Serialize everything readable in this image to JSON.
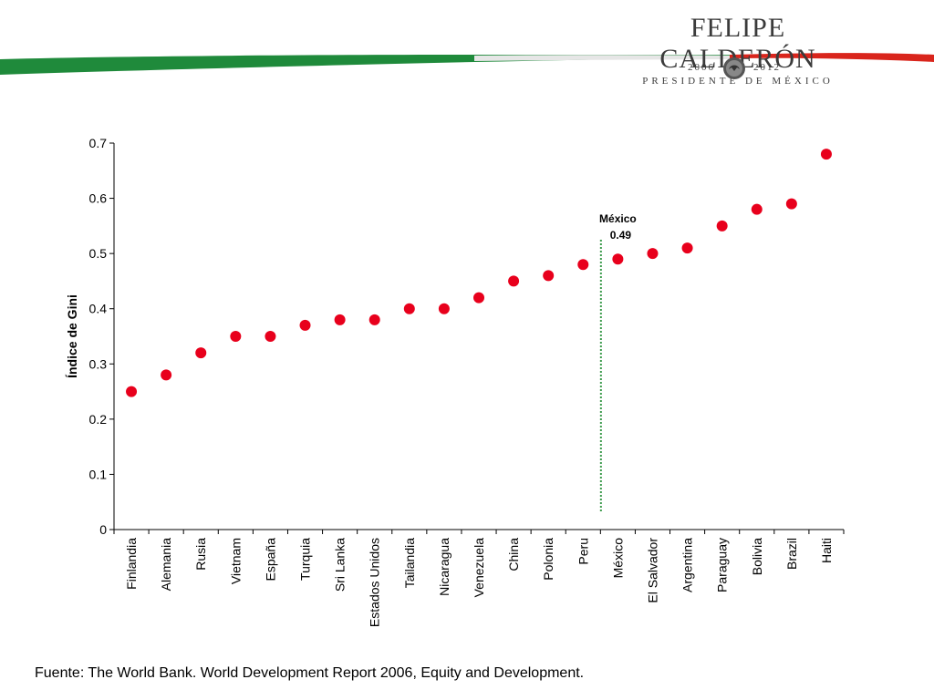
{
  "header": {
    "brand_name": "FELIPE CALDERÓN",
    "brand_subtitle": "PRESIDENTE DE MÉXICO",
    "year_start": "2006",
    "year_end": "2012",
    "colors": {
      "green": "#1f8a3b",
      "red": "#d9251c",
      "text": "#3b3b3b"
    },
    "seal_icon": "mexican-eagle-seal-icon"
  },
  "chart_data": {
    "type": "scatter",
    "title": "",
    "xlabel": "",
    "ylabel": "Índice de Gini",
    "ylim": [
      0,
      0.7
    ],
    "yticks": [
      "0",
      "0.1",
      "0.2",
      "0.3",
      "0.4",
      "0.5",
      "0.6",
      "0.7"
    ],
    "grid": false,
    "marker_color": "#e8001c",
    "categories": [
      "Finlandia",
      "Alemania",
      "Rusia",
      "Vietnam",
      "España",
      "Turquia",
      "Sri Lanka",
      "Estados Unidos",
      "Tailandia",
      "Nicaragua",
      "Venezuela",
      "China",
      "Polonia",
      "Peru",
      "México",
      "El Salvador",
      "Argentina",
      "Paraguay",
      "Bolivia",
      "Brazil",
      "Haiti"
    ],
    "values": [
      0.25,
      0.28,
      0.32,
      0.35,
      0.35,
      0.37,
      0.38,
      0.38,
      0.4,
      0.4,
      0.42,
      0.45,
      0.46,
      0.48,
      0.49,
      0.5,
      0.51,
      0.55,
      0.58,
      0.59,
      0.68
    ],
    "annotation": {
      "category": "México",
      "label": "México",
      "value_label": "0.49",
      "line_color": "#3a9a4a"
    }
  },
  "footer": {
    "source": "Fuente: The World Bank. World Development Report 2006, Equity and Development."
  }
}
